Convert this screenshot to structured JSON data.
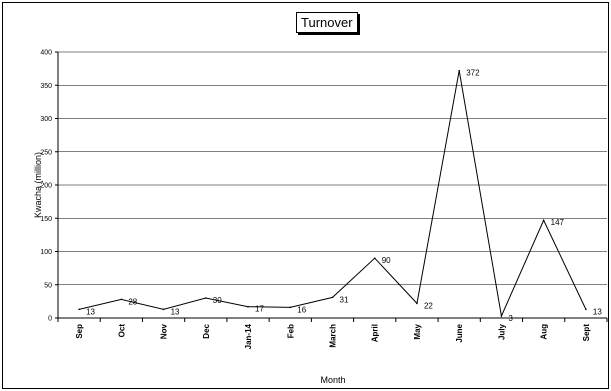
{
  "chart_data": {
    "type": "line",
    "title": "Turnover",
    "xlabel": "Month",
    "ylabel": "Kwacha (million)",
    "categories": [
      "Sep",
      "Oct",
      "Nov",
      "Dec",
      "Jan-14",
      "Feb",
      "March",
      "April",
      "May",
      "June",
      "July",
      "Aug",
      "Sept"
    ],
    "series": [
      {
        "values": [
          13,
          28,
          13,
          30,
          17,
          16,
          31,
          90,
          22,
          372,
          3,
          147,
          13
        ]
      }
    ],
    "data_labels": [
      "13",
      "28",
      "13",
      "30",
      "17",
      "16",
      "31",
      "90",
      "22",
      "372",
      "3",
      "147",
      "13"
    ],
    "ylim": [
      0,
      400
    ],
    "yticks": [
      0,
      50,
      100,
      150,
      200,
      250,
      300,
      350,
      400
    ],
    "ytick_labels": [
      "0",
      "50",
      "100",
      "150",
      "200",
      "250",
      "300",
      "350",
      "400"
    ],
    "grid": true,
    "legend": "none",
    "colors": {
      "line": "#000000",
      "grid": "#000000",
      "background": "#ffffff"
    }
  }
}
